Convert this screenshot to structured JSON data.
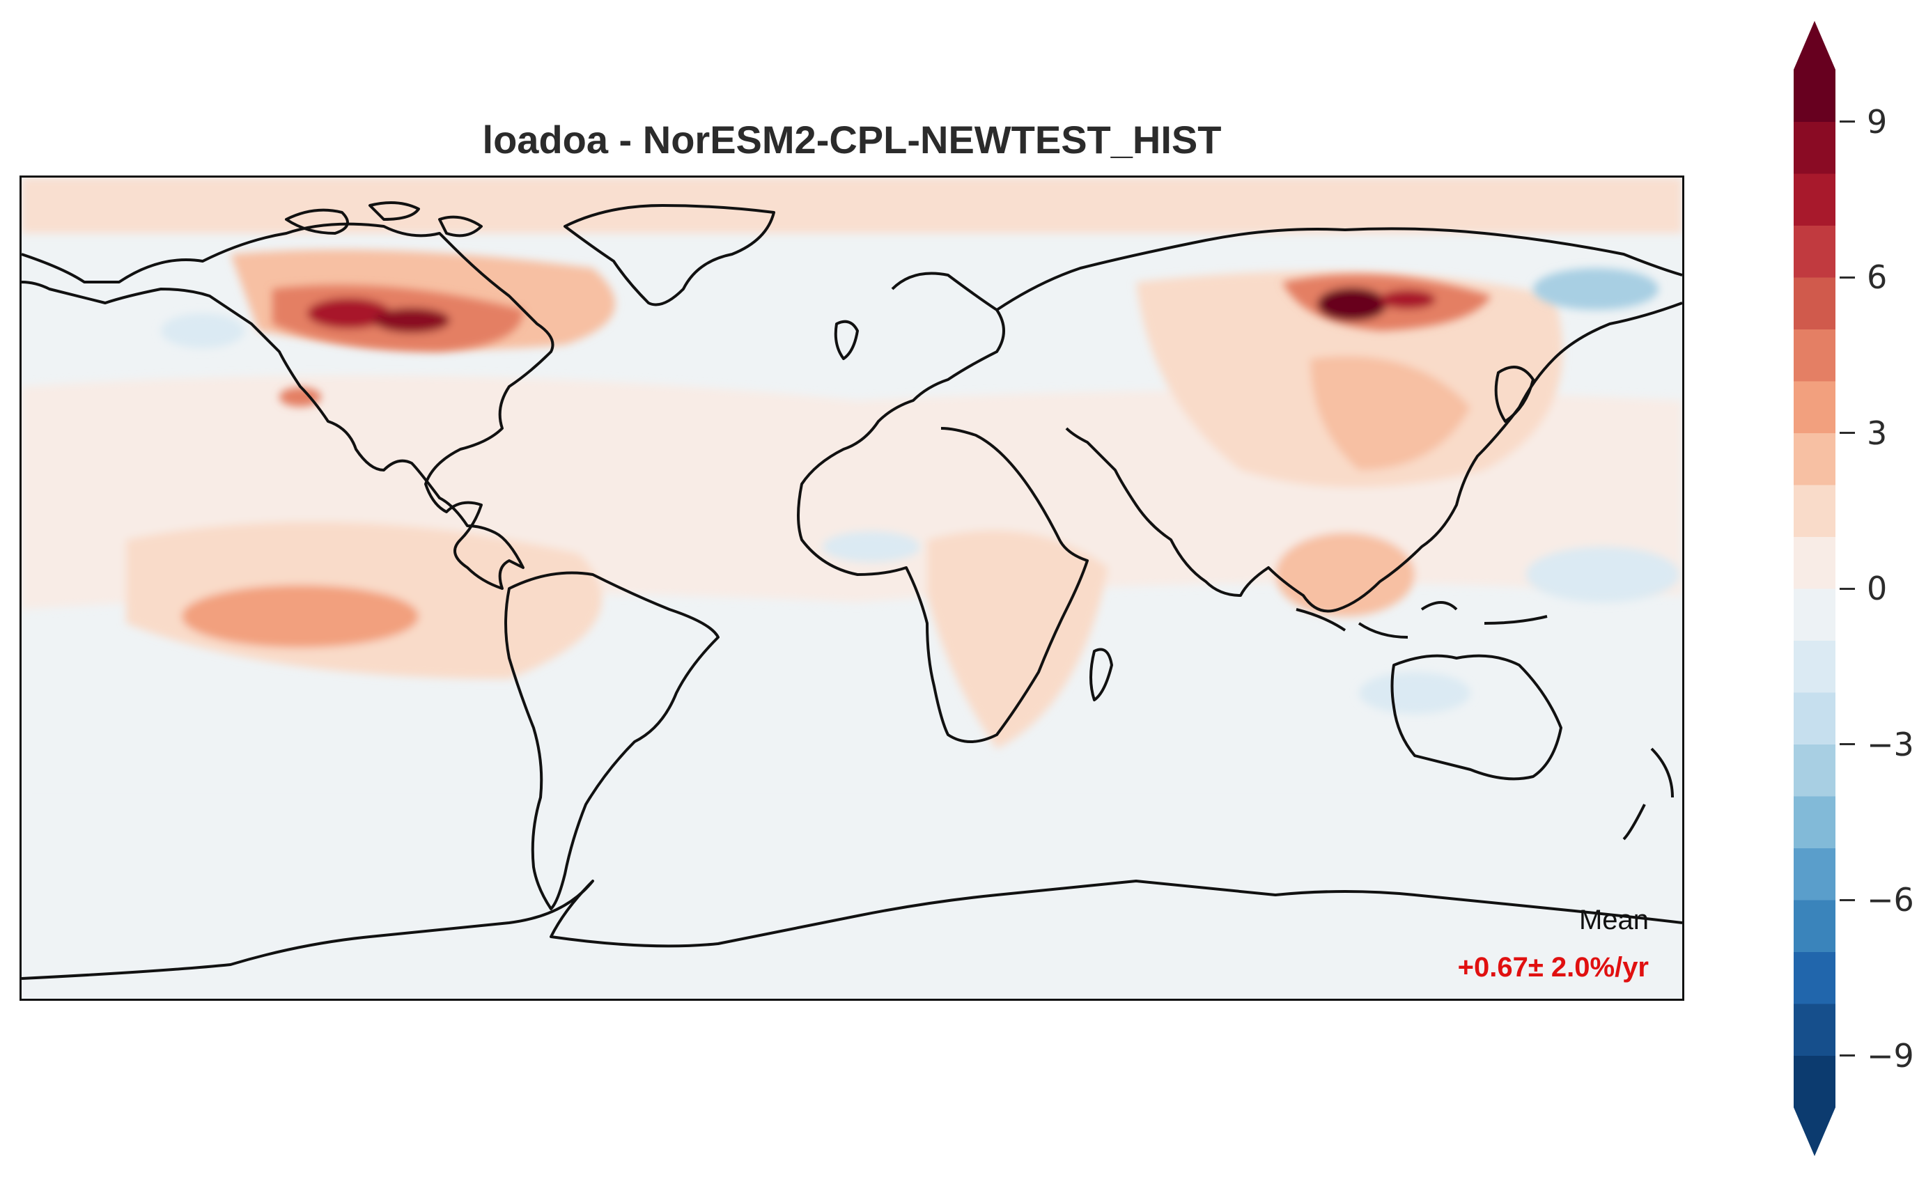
{
  "title": "loadoa - NorESM2-CPL-NEWTEST_HIST",
  "annotation": {
    "mean_label": "Mean",
    "mean_value": "+0.67± 2.0%/yr"
  },
  "colorbar": {
    "levels": [
      -10,
      -9,
      -8,
      -7,
      -6,
      -5,
      -4,
      -3,
      -2,
      -1,
      0,
      1,
      2,
      3,
      4,
      5,
      6,
      7,
      8,
      9,
      10
    ],
    "colors": [
      "#0c3b6f",
      "#164f8c",
      "#2166ac",
      "#3a84bb",
      "#5a9ecb",
      "#82bad8",
      "#a8cfe3",
      "#c6dfee",
      "#dbeaf3",
      "#edf2f5",
      "#f8ece6",
      "#f9dbc9",
      "#f7c0a3",
      "#f2a07e",
      "#e47f64",
      "#d05a4c",
      "#c13a3f",
      "#a8192c",
      "#8a0b24",
      "#67001f"
    ],
    "extend_low_color": "#0c3b6f",
    "extend_high_color": "#67001f",
    "tick_labels": [
      "−9",
      "−6",
      "−3",
      "0",
      "3",
      "6",
      "9"
    ],
    "tick_values": [
      -9,
      -6,
      -3,
      0,
      3,
      6,
      9
    ]
  },
  "colors": {
    "background_field": "#eff3f5",
    "coastline": "#111111",
    "mean_value_color": "#e01010"
  }
}
